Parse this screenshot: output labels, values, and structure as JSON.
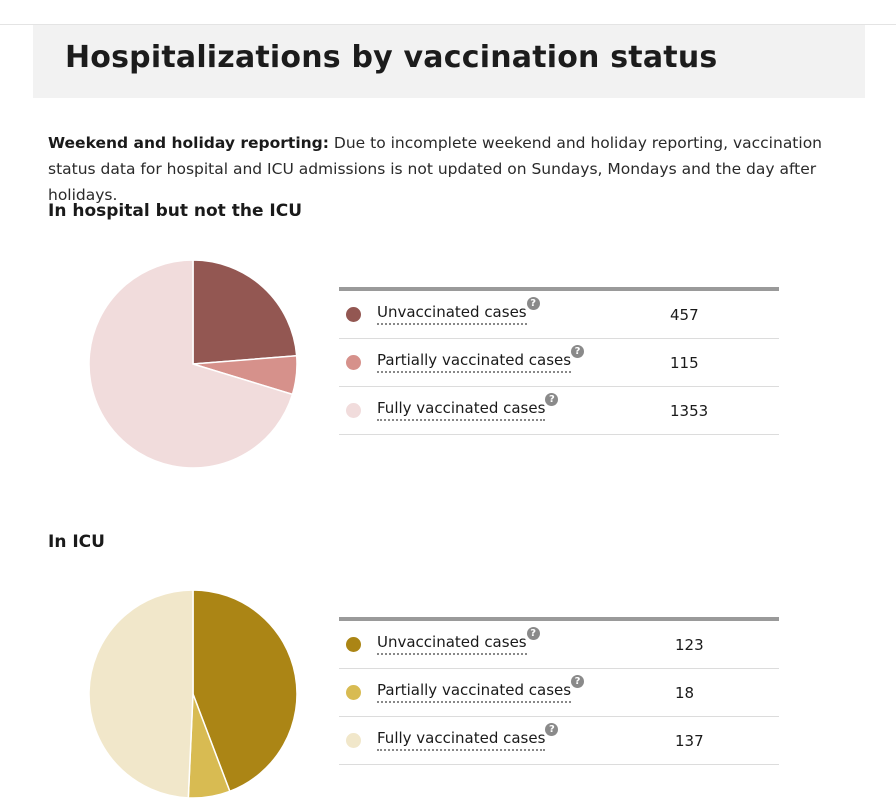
{
  "page": {
    "title": "Hospitalizations by vaccination status"
  },
  "notice": {
    "label": "Weekend and holiday reporting:",
    "text": " Due to incomplete weekend and holiday reporting, vaccination status data for hospital and ICU admissions is not updated on Sundays, Mondays and the day after holidays."
  },
  "help_icon": "question-mark",
  "chart_data": [
    {
      "type": "pie",
      "title": "In hospital but not the ICU",
      "categories": [
        "Unvaccinated cases",
        "Partially vaccinated cases",
        "Fully vaccinated cases"
      ],
      "values": [
        457,
        115,
        1353
      ],
      "colors": [
        "#935752",
        "#d6918b",
        "#f1dcdc"
      ]
    },
    {
      "type": "pie",
      "title": "In ICU",
      "categories": [
        "Unvaccinated cases",
        "Partially vaccinated cases",
        "Fully vaccinated cases"
      ],
      "values": [
        123,
        18,
        137
      ],
      "colors": [
        "#ab8515",
        "#d8bb52",
        "#f1e7ca"
      ]
    }
  ]
}
